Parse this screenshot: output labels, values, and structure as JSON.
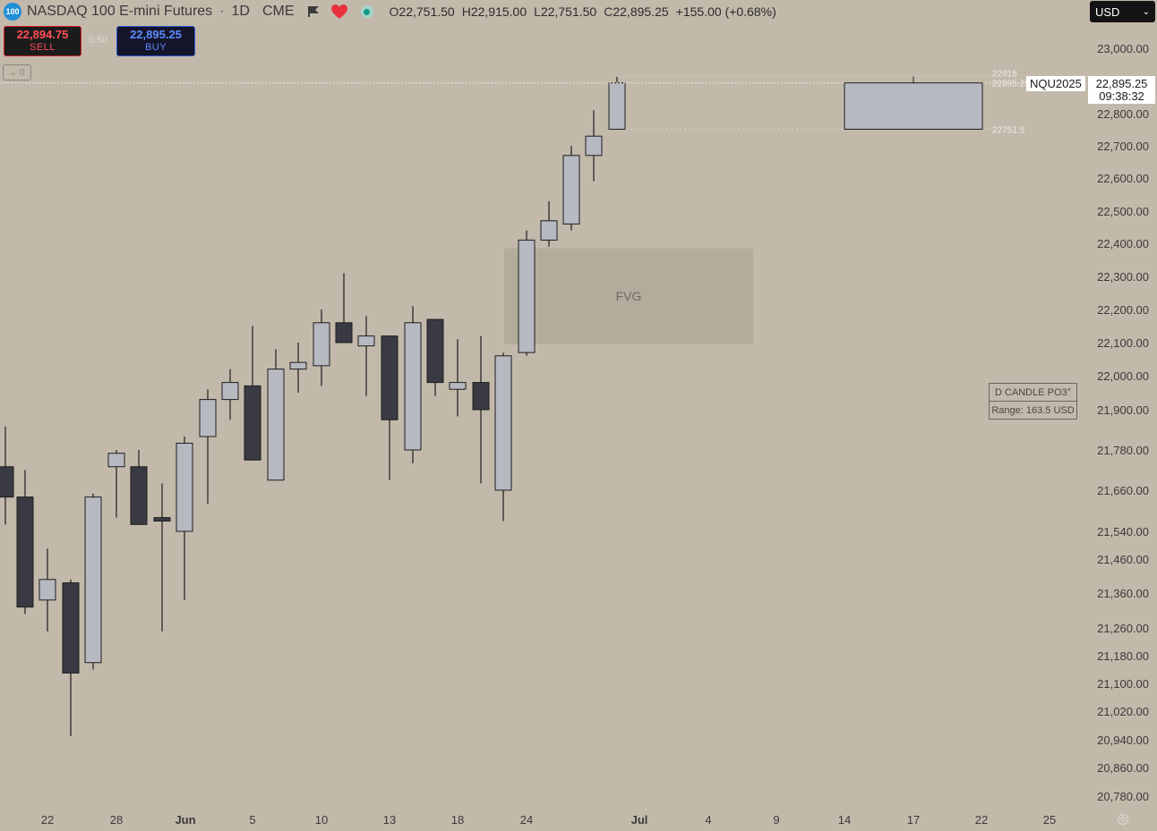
{
  "header": {
    "symbol_badge": "100",
    "title": "NASDAQ 100 E-mini Futures",
    "interval": "1D",
    "exchange": "CME",
    "ohlc": {
      "open_label": "O",
      "open": "22,751.50",
      "high_label": "H",
      "high": "22,915.00",
      "low_label": "L",
      "low": "22,751.50",
      "close_label": "C",
      "close": "22,895.25",
      "change": "+155.00 (+0.68%)"
    },
    "icons": [
      "flag-icon",
      "heart-icon",
      "status-dot-icon"
    ]
  },
  "trade": {
    "sell_price": "22,894.75",
    "sell_label": "SELL",
    "spread": "0.50",
    "buy_price": "22,895.25",
    "buy_label": "BUY"
  },
  "collapse_count": "0",
  "currency": "USD",
  "price_tag": {
    "symbol": "NQU2025",
    "price": "22,895.25",
    "countdown": "09:38:32"
  },
  "po3": {
    "title": "D CANDLE PO3°",
    "range": "Range: 163.5 USD"
  },
  "colors": {
    "background": "#c3b9ab",
    "bull_body": "#b7b9c1",
    "bear_body": "#3a3b42",
    "fvg": "#b3ac9c"
  },
  "chart_data": {
    "type": "candlestick",
    "y_ticks": [
      "23,000.00",
      "22,900.00",
      "22,800.00",
      "22,700.00",
      "22,600.00",
      "22,500.00",
      "22,400.00",
      "22,300.00",
      "22,200.00",
      "22,100.00",
      "22,000.00",
      "21,900.00",
      "21,780.00",
      "21,660.00",
      "21,540.00",
      "21,460.00",
      "21,360.00",
      "21,260.00",
      "21,180.00",
      "21,100.00",
      "21,020.00",
      "20,940.00",
      "20,860.00",
      "20,780.00"
    ],
    "x_ticks": [
      "22",
      "28",
      "Jun",
      "5",
      "10",
      "13",
      "18",
      "24",
      "Jul",
      "4",
      "9",
      "14",
      "17",
      "22",
      "25"
    ],
    "candles": [
      {
        "date": "2025-05-20",
        "o": 21730,
        "h": 21850,
        "l": 21560,
        "c": 21640
      },
      {
        "date": "2025-05-21",
        "o": 21640,
        "h": 21720,
        "l": 21300,
        "c": 21320
      },
      {
        "date": "2025-05-22",
        "o": 21340,
        "h": 21490,
        "l": 21250,
        "c": 21400
      },
      {
        "date": "2025-05-23",
        "o": 21390,
        "h": 21400,
        "l": 20950,
        "c": 21130
      },
      {
        "date": "2025-05-26",
        "o": 21160,
        "h": 21650,
        "l": 21140,
        "c": 21640
      },
      {
        "date": "2025-05-27",
        "o": 21730,
        "h": 21780,
        "l": 21580,
        "c": 21770
      },
      {
        "date": "2025-05-28",
        "o": 21730,
        "h": 21780,
        "l": 21560,
        "c": 21560
      },
      {
        "date": "2025-05-29",
        "o": 21580,
        "h": 21680,
        "l": 21250,
        "c": 21570
      },
      {
        "date": "2025-05-30",
        "o": 21540,
        "h": 21820,
        "l": 21340,
        "c": 21800
      },
      {
        "date": "2025-06-02",
        "o": 21820,
        "h": 21960,
        "l": 21620,
        "c": 21930
      },
      {
        "date": "2025-06-03",
        "o": 21930,
        "h": 22020,
        "l": 21870,
        "c": 21980
      },
      {
        "date": "2025-06-04",
        "o": 21970,
        "h": 22150,
        "l": 21760,
        "c": 21750
      },
      {
        "date": "2025-06-05",
        "o": 21690,
        "h": 22080,
        "l": 21690,
        "c": 22020
      },
      {
        "date": "2025-06-06",
        "o": 22020,
        "h": 22100,
        "l": 21950,
        "c": 22040
      },
      {
        "date": "2025-06-09",
        "o": 22030,
        "h": 22200,
        "l": 21970,
        "c": 22160
      },
      {
        "date": "2025-06-10",
        "o": 22160,
        "h": 22310,
        "l": 22110,
        "c": 22100
      },
      {
        "date": "2025-06-11",
        "o": 22090,
        "h": 22180,
        "l": 21940,
        "c": 22120
      },
      {
        "date": "2025-06-12",
        "o": 22120,
        "h": 22120,
        "l": 21690,
        "c": 21870
      },
      {
        "date": "2025-06-13",
        "o": 21780,
        "h": 22210,
        "l": 21740,
        "c": 22160
      },
      {
        "date": "2025-06-16",
        "o": 22170,
        "h": 22170,
        "l": 21940,
        "c": 21980
      },
      {
        "date": "2025-06-17",
        "o": 21960,
        "h": 22110,
        "l": 21880,
        "c": 21980
      },
      {
        "date": "2025-06-18",
        "o": 21980,
        "h": 22120,
        "l": 21680,
        "c": 21900
      },
      {
        "date": "2025-06-20",
        "o": 21660,
        "h": 22070,
        "l": 21570,
        "c": 22060
      },
      {
        "date": "2025-06-23",
        "o": 22070,
        "h": 22440,
        "l": 22060,
        "c": 22410
      },
      {
        "date": "2025-06-24",
        "o": 22410,
        "h": 22530,
        "l": 22390,
        "c": 22470
      },
      {
        "date": "2025-06-25",
        "o": 22460,
        "h": 22700,
        "l": 22440,
        "c": 22670
      },
      {
        "date": "2025-06-26",
        "o": 22670,
        "h": 22810,
        "l": 22590,
        "c": 22730
      },
      {
        "date": "2025-06-27",
        "o": 22751.5,
        "h": 22915,
        "l": 22751.5,
        "c": 22895.25
      }
    ],
    "fvg": {
      "label": "FVG",
      "from": "2025-06-22",
      "to": "2025-07-03",
      "top": 22385,
      "bottom": 22095
    },
    "po3_projection": {
      "from": "2025-07-14",
      "to": "2025-07-23",
      "high": 22915,
      "low": 22751.5,
      "close": 22895.25
    },
    "line_labels": {
      "high": "22915",
      "close": "22895.25",
      "low": "22751.5"
    }
  }
}
